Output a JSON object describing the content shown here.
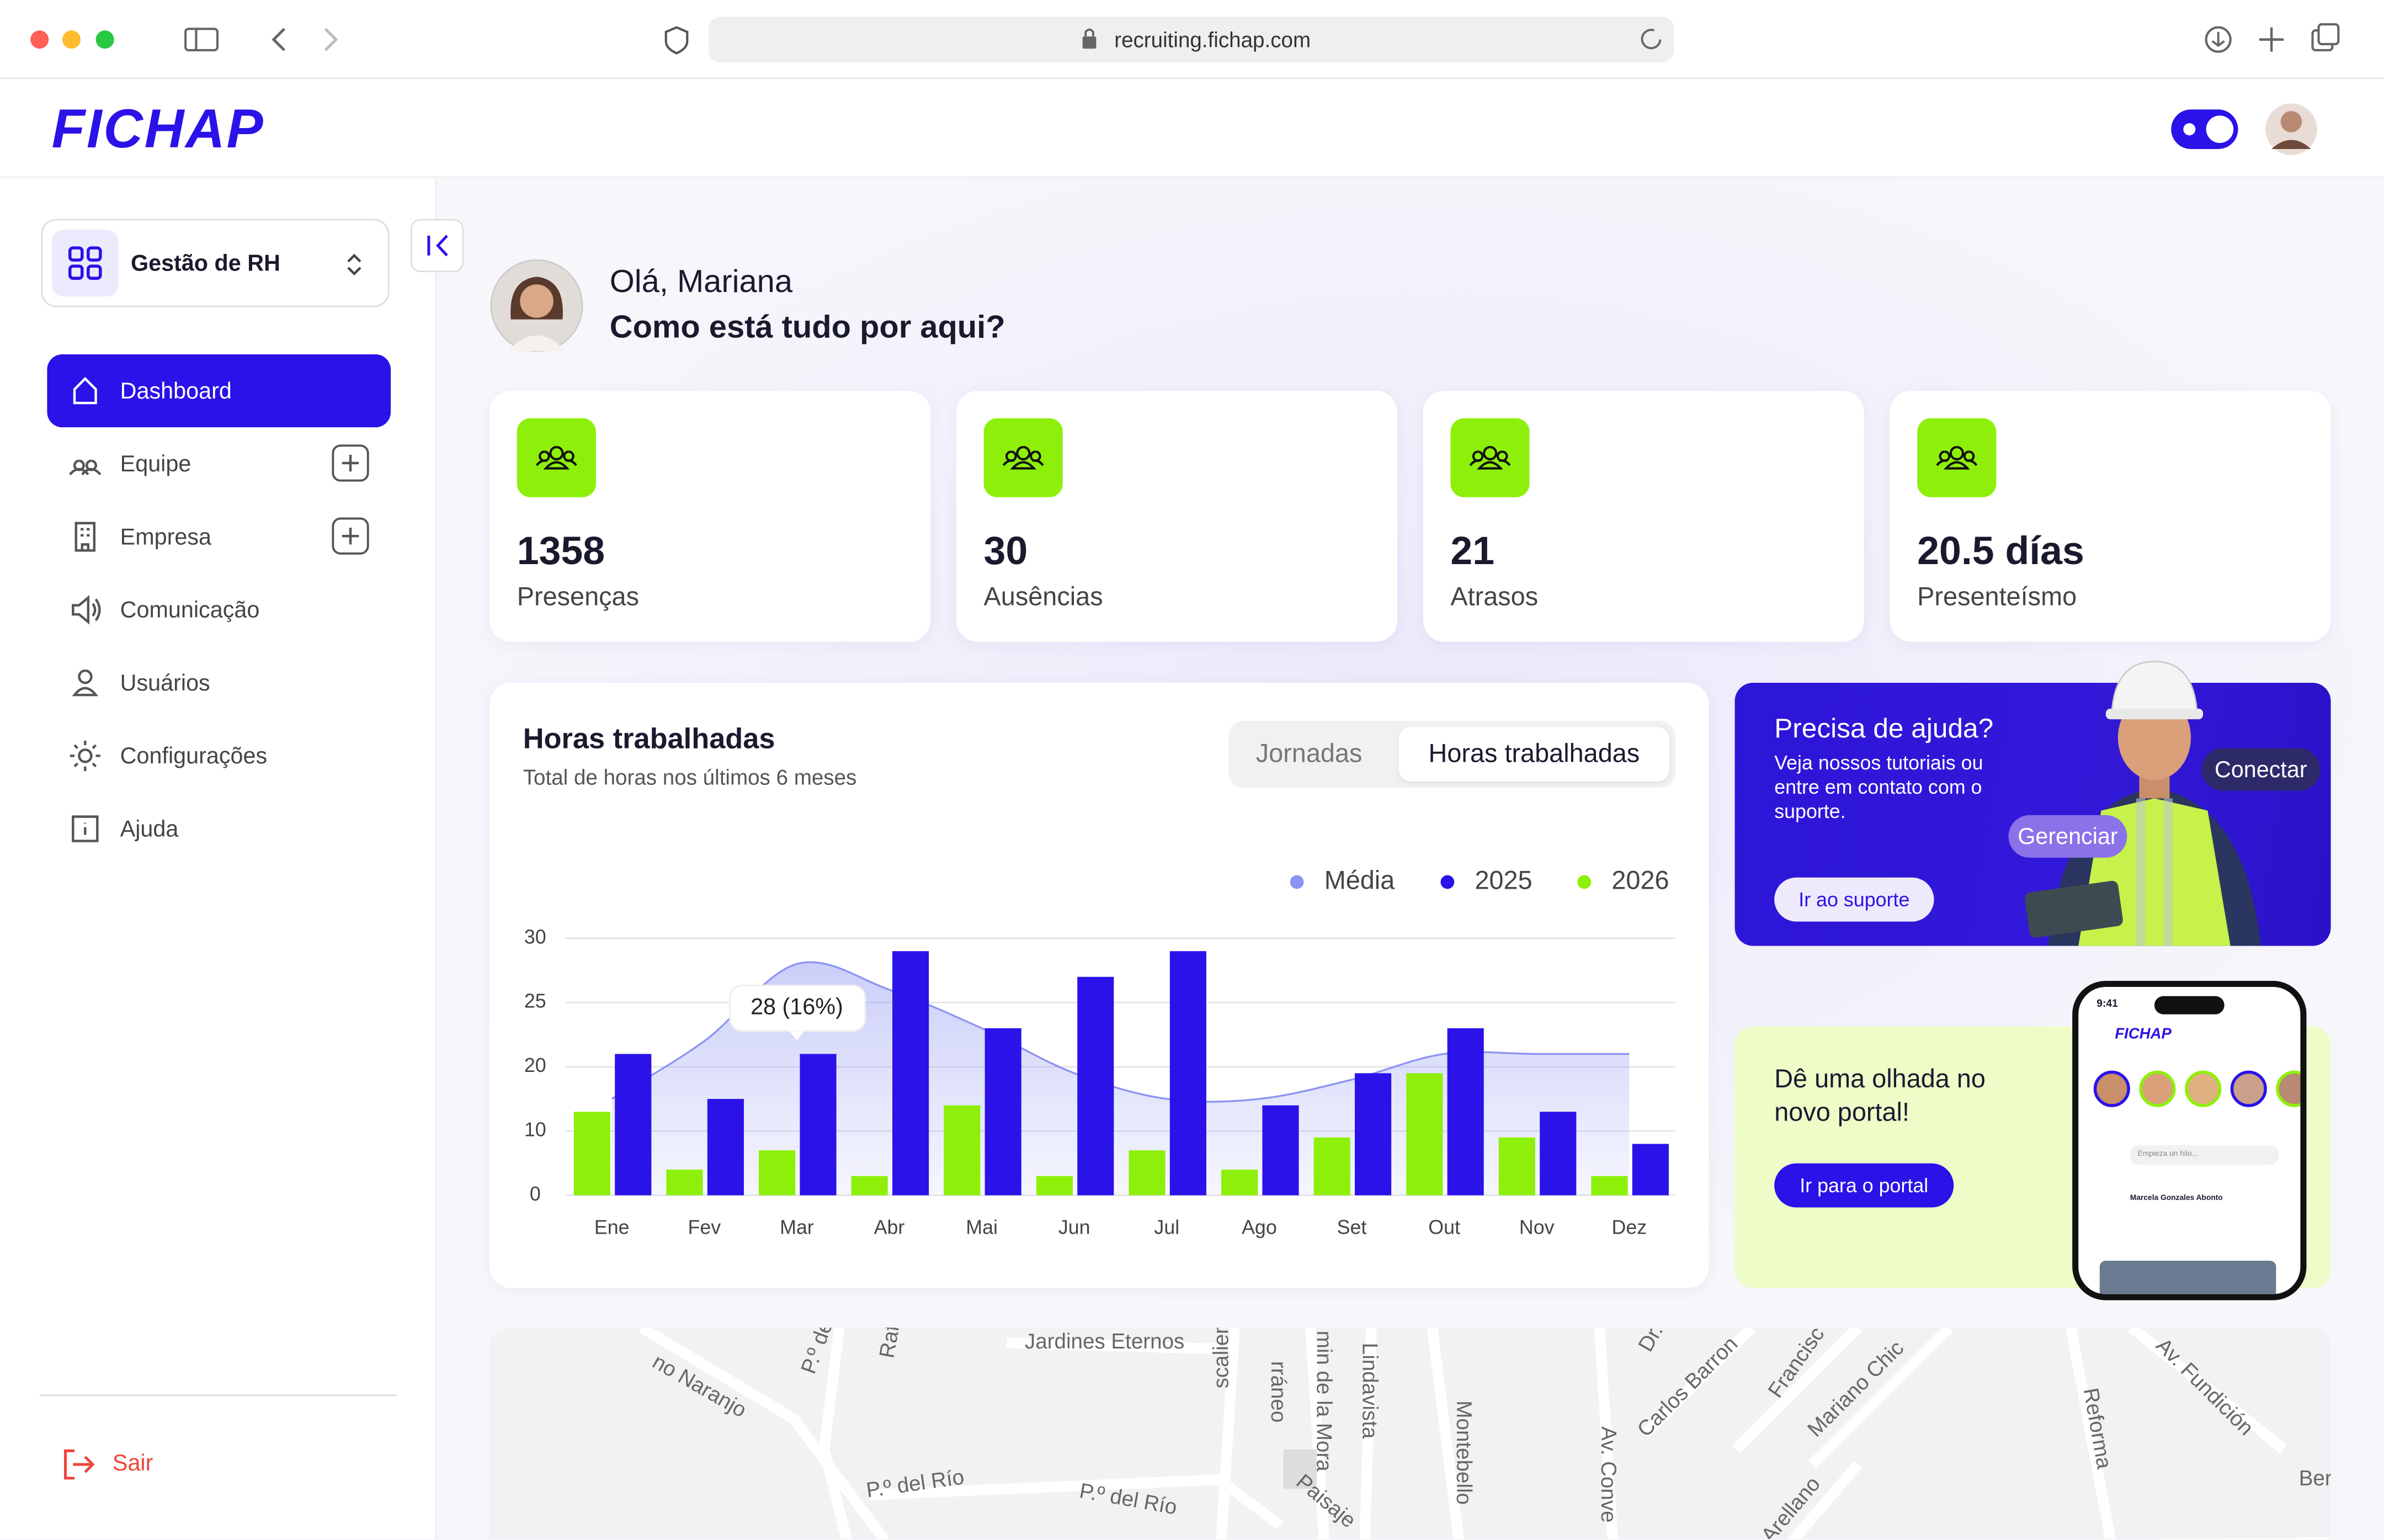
{
  "browser": {
    "url": "recruiting.fichap.com"
  },
  "header": {
    "logo": "FICHAP"
  },
  "sidebar": {
    "workspace": "Gestão de RH",
    "menu": [
      "Dashboard",
      "Equipe",
      "Empresa",
      "Comunicação",
      "Usuários",
      "Configurações",
      "Ajuda"
    ],
    "logout": "Sair"
  },
  "greeting": {
    "hello": "Olá, Mariana",
    "question": "Como está tudo por aqui?"
  },
  "stats": [
    {
      "value": "1358",
      "label": "Presenças"
    },
    {
      "value": "30",
      "label": "Ausências"
    },
    {
      "value": "21",
      "label": "Atrasos"
    },
    {
      "value": "20.5 días",
      "label": "Presenteísmo"
    }
  ],
  "chart_data": {
    "type": "bar",
    "title": "Horas trabalhadas",
    "subtitle": "Total de horas nos últimos 6 meses",
    "tabs": [
      "Jornadas",
      "Horas trabalhadas"
    ],
    "categories": [
      "Ene",
      "Fev",
      "Mar",
      "Abr",
      "Mai",
      "Jun",
      "Jul",
      "Ago",
      "Set",
      "Out",
      "Nov",
      "Dez"
    ],
    "series": [
      {
        "name": "Média",
        "color": "#8c93f2",
        "values": [
          15,
          22,
          28,
          26,
          23,
          19,
          15,
          15,
          18,
          21,
          21,
          21
        ]
      },
      {
        "name": "2025",
        "color": "#2a12e8",
        "values": [
          21,
          15,
          21,
          29,
          23,
          27,
          29,
          14,
          19,
          23,
          13,
          8
        ]
      },
      {
        "name": "2026",
        "color": "#8ef00a",
        "values": [
          13,
          4,
          7,
          3,
          14,
          3,
          7,
          4,
          9,
          19,
          9,
          3
        ]
      }
    ],
    "ylim": [
      0,
      30
    ],
    "yticks": [
      0,
      10,
      20,
      25,
      30
    ],
    "grid": true,
    "tooltip": "28 (16%)"
  },
  "help_card": {
    "title": "Precisa de ajuda?",
    "text": "Veja nossos tutoriais ou entre em contato com o suporte.",
    "button": "Ir ao suporte",
    "tags": [
      "Conectar",
      "Gerenciar"
    ]
  },
  "portal_card": {
    "title": "Dê uma olhada no novo portal!",
    "button": "Ir para o portal",
    "phone": {
      "time": "9:41",
      "logo": "FICHAP",
      "input": "Empieza un hilo...",
      "author": "Marcela Gonzales Abonto"
    }
  },
  "map": {
    "labels": [
      "no Naranjo",
      "P.º del",
      "Rafae",
      "Jardines Eternos",
      "rráneo",
      "min de la Mora",
      "Lindavista",
      "scalientes Pte.",
      "Montebello",
      "Paisaje",
      "P.º del Río",
      "P.º del Río",
      "Av. Conve",
      "Dr.",
      "Carlos Barron",
      "Francisc",
      "Mariano Chic",
      "Arellano",
      "Reforma",
      "Av. Fundición",
      "Ber"
    ]
  }
}
